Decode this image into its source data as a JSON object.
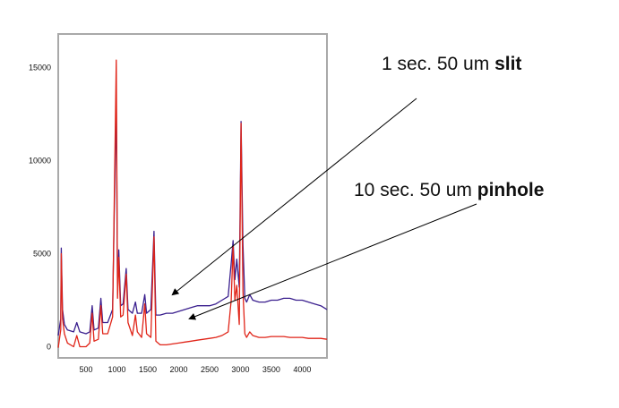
{
  "chart_data": {
    "type": "line",
    "xlim": [
      50,
      4400
    ],
    "ylim": [
      -600,
      16800
    ],
    "x_ticks": [
      500,
      1000,
      1500,
      2000,
      2500,
      3000,
      3500,
      4000
    ],
    "y_ticks": [
      0,
      5000,
      10000,
      15000
    ],
    "grid": false,
    "series": [
      {
        "color": "#3a1f8e",
        "points": [
          [
            50,
            600
          ],
          [
            90,
            1500
          ],
          [
            100,
            5300
          ],
          [
            120,
            2000
          ],
          [
            150,
            1200
          ],
          [
            200,
            900
          ],
          [
            300,
            800
          ],
          [
            350,
            1300
          ],
          [
            400,
            800
          ],
          [
            500,
            700
          ],
          [
            560,
            800
          ],
          [
            600,
            2200
          ],
          [
            630,
            900
          ],
          [
            700,
            1000
          ],
          [
            740,
            2600
          ],
          [
            770,
            1300
          ],
          [
            850,
            1300
          ],
          [
            930,
            2000
          ],
          [
            990,
            13300
          ],
          [
            1010,
            3000
          ],
          [
            1030,
            5200
          ],
          [
            1060,
            2200
          ],
          [
            1100,
            2300
          ],
          [
            1150,
            4200
          ],
          [
            1180,
            2000
          ],
          [
            1250,
            1800
          ],
          [
            1300,
            2400
          ],
          [
            1330,
            1800
          ],
          [
            1400,
            1800
          ],
          [
            1450,
            2800
          ],
          [
            1480,
            1800
          ],
          [
            1550,
            2000
          ],
          [
            1600,
            6200
          ],
          [
            1630,
            1700
          ],
          [
            1700,
            1700
          ],
          [
            1800,
            1800
          ],
          [
            1900,
            1800
          ],
          [
            2000,
            1900
          ],
          [
            2100,
            2000
          ],
          [
            2200,
            2100
          ],
          [
            2300,
            2200
          ],
          [
            2400,
            2200
          ],
          [
            2500,
            2200
          ],
          [
            2600,
            2300
          ],
          [
            2700,
            2500
          ],
          [
            2800,
            2700
          ],
          [
            2850,
            4500
          ],
          [
            2880,
            5700
          ],
          [
            2910,
            3600
          ],
          [
            2940,
            4700
          ],
          [
            2980,
            3200
          ],
          [
            3010,
            12100
          ],
          [
            3040,
            5500
          ],
          [
            3070,
            2600
          ],
          [
            3100,
            2400
          ],
          [
            3150,
            2800
          ],
          [
            3200,
            2500
          ],
          [
            3300,
            2400
          ],
          [
            3400,
            2400
          ],
          [
            3500,
            2500
          ],
          [
            3600,
            2500
          ],
          [
            3700,
            2600
          ],
          [
            3800,
            2600
          ],
          [
            3900,
            2500
          ],
          [
            4000,
            2500
          ],
          [
            4100,
            2400
          ],
          [
            4200,
            2300
          ],
          [
            4300,
            2200
          ],
          [
            4400,
            2000
          ]
        ]
      },
      {
        "color": "#e02418",
        "points": [
          [
            50,
            -50
          ],
          [
            90,
            900
          ],
          [
            100,
            5000
          ],
          [
            120,
            1500
          ],
          [
            150,
            700
          ],
          [
            200,
            200
          ],
          [
            300,
            0
          ],
          [
            350,
            600
          ],
          [
            400,
            0
          ],
          [
            500,
            0
          ],
          [
            560,
            200
          ],
          [
            600,
            1800
          ],
          [
            630,
            300
          ],
          [
            700,
            400
          ],
          [
            740,
            2200
          ],
          [
            770,
            700
          ],
          [
            850,
            700
          ],
          [
            930,
            1600
          ],
          [
            990,
            15400
          ],
          [
            1010,
            2600
          ],
          [
            1030,
            4800
          ],
          [
            1060,
            1600
          ],
          [
            1100,
            1700
          ],
          [
            1150,
            3900
          ],
          [
            1180,
            1300
          ],
          [
            1250,
            600
          ],
          [
            1300,
            1700
          ],
          [
            1330,
            800
          ],
          [
            1400,
            500
          ],
          [
            1450,
            2300
          ],
          [
            1480,
            700
          ],
          [
            1550,
            500
          ],
          [
            1600,
            5900
          ],
          [
            1630,
            300
          ],
          [
            1700,
            100
          ],
          [
            1800,
            100
          ],
          [
            1900,
            150
          ],
          [
            2000,
            200
          ],
          [
            2100,
            250
          ],
          [
            2200,
            300
          ],
          [
            2300,
            350
          ],
          [
            2400,
            400
          ],
          [
            2500,
            450
          ],
          [
            2600,
            500
          ],
          [
            2700,
            600
          ],
          [
            2800,
            800
          ],
          [
            2850,
            2500
          ],
          [
            2880,
            5400
          ],
          [
            2910,
            2500
          ],
          [
            2940,
            3300
          ],
          [
            2980,
            1200
          ],
          [
            3010,
            12000
          ],
          [
            3040,
            3000
          ],
          [
            3070,
            700
          ],
          [
            3100,
            500
          ],
          [
            3150,
            800
          ],
          [
            3200,
            600
          ],
          [
            3300,
            500
          ],
          [
            3400,
            500
          ],
          [
            3500,
            550
          ],
          [
            3600,
            550
          ],
          [
            3700,
            550
          ],
          [
            3800,
            500
          ],
          [
            3900,
            500
          ],
          [
            4000,
            500
          ],
          [
            4100,
            450
          ],
          [
            4200,
            450
          ],
          [
            4300,
            450
          ],
          [
            4400,
            400
          ]
        ]
      }
    ]
  },
  "annotations": [
    {
      "text": "1 sec. 50 um ",
      "bold": "slit"
    },
    {
      "text": "10 sec. 50 um ",
      "bold": "pinhole"
    }
  ]
}
